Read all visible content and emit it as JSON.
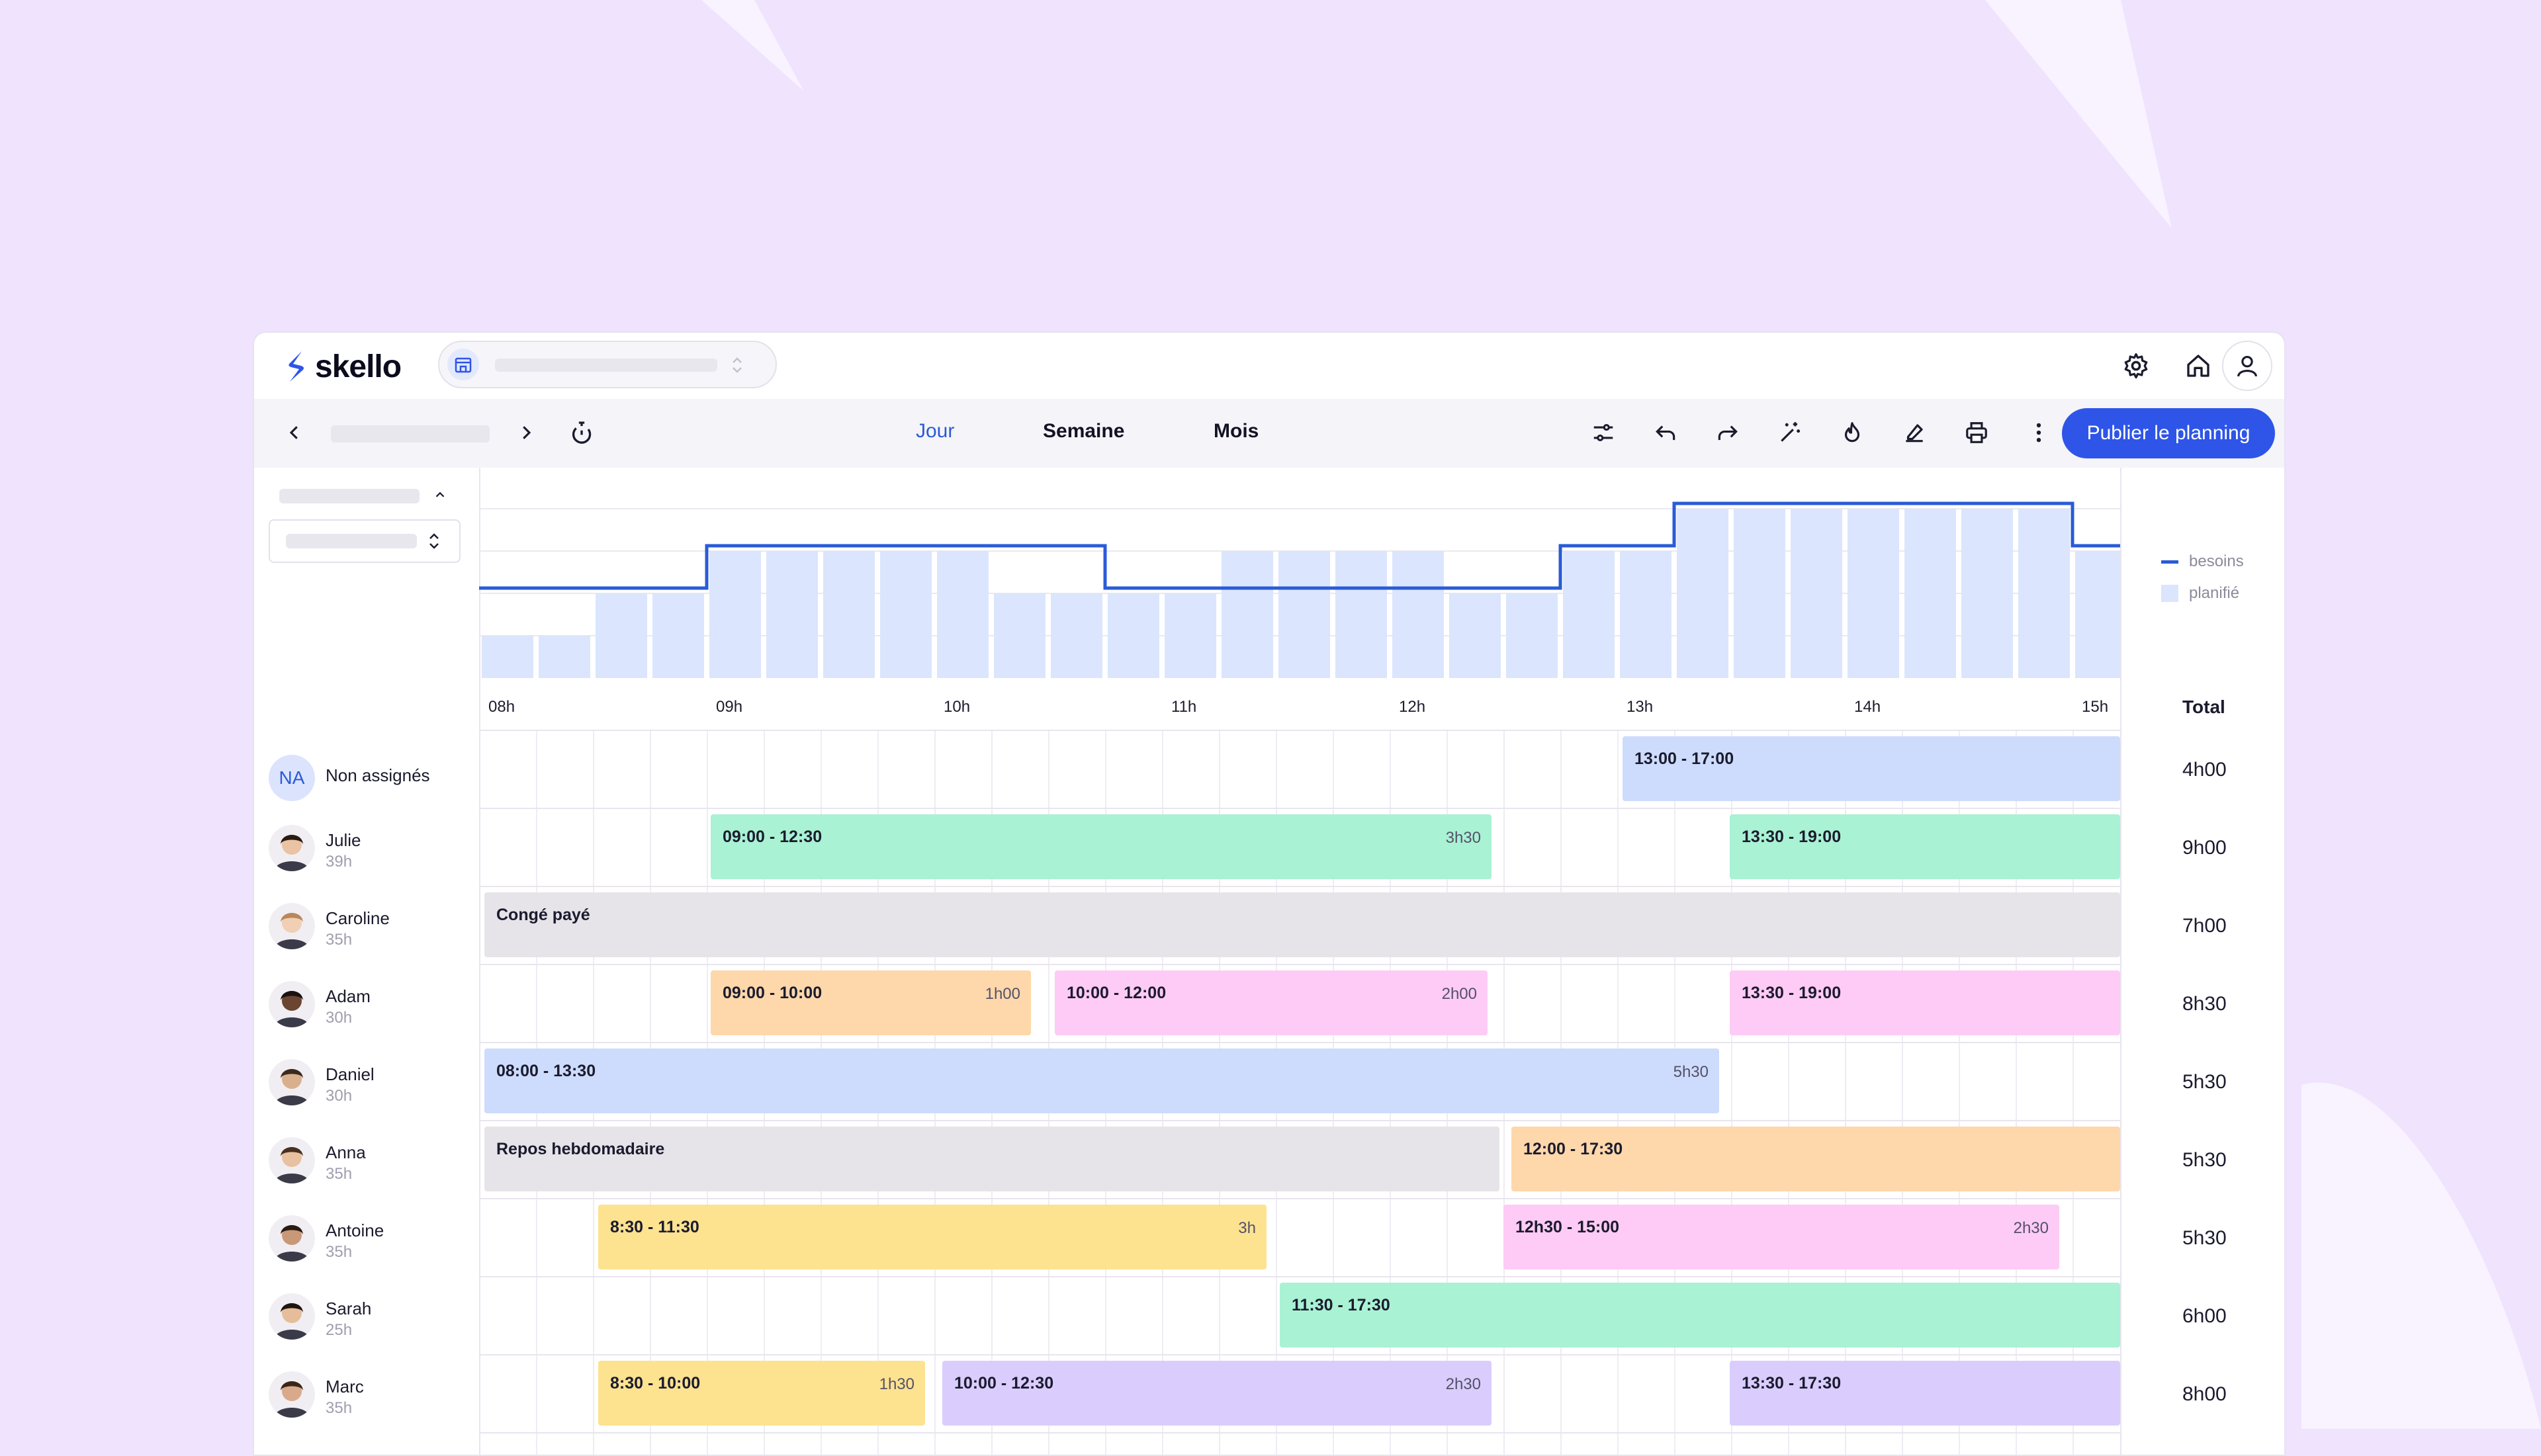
{
  "app": {
    "brand": "skello",
    "publish_label": "Publier le planning",
    "views": [
      "Jour",
      "Semaine",
      "Mois"
    ],
    "active_view": "Jour",
    "accent": "#2E55E8"
  },
  "legend": {
    "besoins": "besoins",
    "planifie": "planifié"
  },
  "total_label": "Total",
  "chart_data": {
    "type": "bar",
    "x_ticks": [
      "08h",
      "09h",
      "10h",
      "11h",
      "12h",
      "13h",
      "14h",
      "15h"
    ],
    "planifie": [
      1,
      1,
      2,
      2,
      3,
      3,
      3,
      3,
      3,
      2,
      2,
      2,
      2,
      3,
      3,
      3,
      3,
      2,
      2,
      3,
      3,
      4,
      4,
      4,
      4,
      4,
      4,
      4,
      3
    ],
    "besoins": [
      2,
      2,
      2,
      2,
      3,
      3,
      3,
      3,
      3,
      3,
      3,
      2,
      2,
      2,
      2,
      2,
      2,
      2,
      2,
      3,
      3,
      4,
      4,
      4,
      4,
      4,
      4,
      4,
      3
    ],
    "ylim": [
      0,
      4.5
    ]
  },
  "rows": [
    {
      "name": "Non assignés",
      "initials": "NA",
      "hours": "",
      "total": "4h00",
      "shifts": [
        {
          "label": "13:00 - 17:00",
          "duration": "",
          "color": "blue"
        }
      ]
    },
    {
      "name": "Julie",
      "hours": "39h",
      "total": "9h00",
      "shifts": [
        {
          "label": "09:00 - 12:30",
          "duration": "3h30",
          "color": "green"
        },
        {
          "label": "13:30 - 19:00",
          "duration": "",
          "color": "green"
        }
      ]
    },
    {
      "name": "Caroline",
      "hours": "35h",
      "total": "7h00",
      "shifts": [
        {
          "label": "Congé payé",
          "duration": "",
          "color": "gray"
        }
      ]
    },
    {
      "name": "Adam",
      "hours": "30h",
      "total": "8h30",
      "shifts": [
        {
          "label": "09:00 - 10:00",
          "duration": "1h00",
          "color": "orange"
        },
        {
          "label": "10:00 - 12:00",
          "duration": "2h00",
          "color": "pink"
        },
        {
          "label": "13:30 - 19:00",
          "duration": "",
          "color": "pink"
        }
      ]
    },
    {
      "name": "Daniel",
      "hours": "30h",
      "total": "5h30",
      "shifts": [
        {
          "label": "08:00 - 13:30",
          "duration": "5h30",
          "color": "blue"
        }
      ]
    },
    {
      "name": "Anna",
      "hours": "35h",
      "total": "5h30",
      "shifts": [
        {
          "label": "Repos hebdomadaire",
          "duration": "",
          "color": "gray"
        },
        {
          "label": "12:00 - 17:30",
          "duration": "",
          "color": "orange"
        }
      ]
    },
    {
      "name": "Antoine",
      "hours": "35h",
      "total": "5h30",
      "shifts": [
        {
          "label": "8:30 - 11:30",
          "duration": "3h",
          "color": "yellow"
        },
        {
          "label": "12h30 - 15:00",
          "duration": "2h30",
          "color": "pink"
        }
      ]
    },
    {
      "name": "Sarah",
      "hours": "25h",
      "total": "6h00",
      "shifts": [
        {
          "label": "11:30 - 17:30",
          "duration": "",
          "color": "green"
        }
      ]
    },
    {
      "name": "Marc",
      "hours": "35h",
      "total": "8h00",
      "shifts": [
        {
          "label": "8:30 - 10:00",
          "duration": "1h30",
          "color": "yellow"
        },
        {
          "label": "10:00 - 12:30",
          "duration": "2h30",
          "color": "purple"
        },
        {
          "label": "13:30 - 17:30",
          "duration": "",
          "color": "purple"
        }
      ]
    }
  ]
}
